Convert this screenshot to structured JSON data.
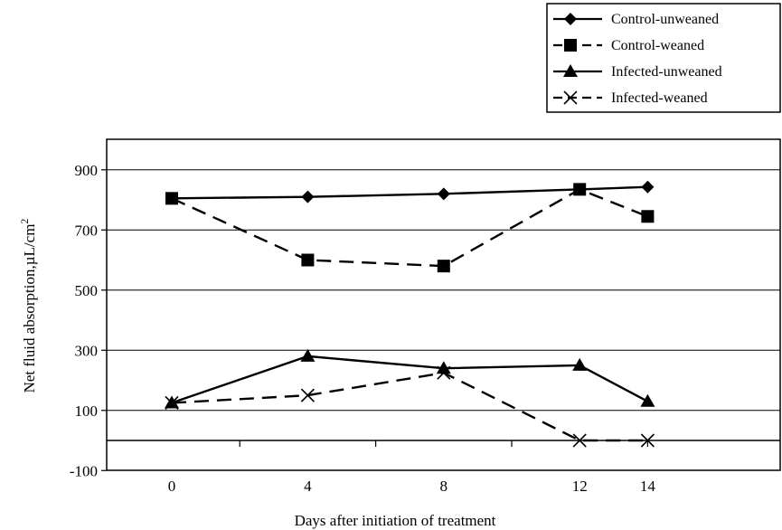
{
  "chart_data": {
    "type": "line",
    "xlabel": "Days after initiation of treatment",
    "ylabel": "Net fluid absorption,µL/cm",
    "ylabel_superscript": "2",
    "x_ticks": [
      0,
      4,
      8,
      12,
      14
    ],
    "y_ticks": [
      -100,
      100,
      300,
      500,
      700,
      900
    ],
    "ylim": [
      -100,
      1000
    ],
    "grid": "horizontal",
    "legend_position": "top-right",
    "series": [
      {
        "name": "Control-unweaned",
        "marker": "diamond",
        "line": "solid",
        "x": [
          0,
          4,
          8,
          12,
          14
        ],
        "y": [
          805,
          810,
          820,
          835,
          843
        ]
      },
      {
        "name": "Control-weaned",
        "marker": "square",
        "line": "dashed",
        "x": [
          0,
          4,
          8,
          12,
          14
        ],
        "y": [
          805,
          600,
          580,
          835,
          745
        ]
      },
      {
        "name": "Infected-unweaned",
        "marker": "triangle",
        "line": "solid",
        "x": [
          0,
          4,
          8,
          12,
          14
        ],
        "y": [
          125,
          280,
          240,
          250,
          130
        ]
      },
      {
        "name": "Infected-weaned",
        "marker": "cross",
        "line": "dashed",
        "x": [
          0,
          4,
          8,
          12,
          14
        ],
        "y": [
          125,
          150,
          225,
          0,
          0
        ]
      }
    ]
  }
}
